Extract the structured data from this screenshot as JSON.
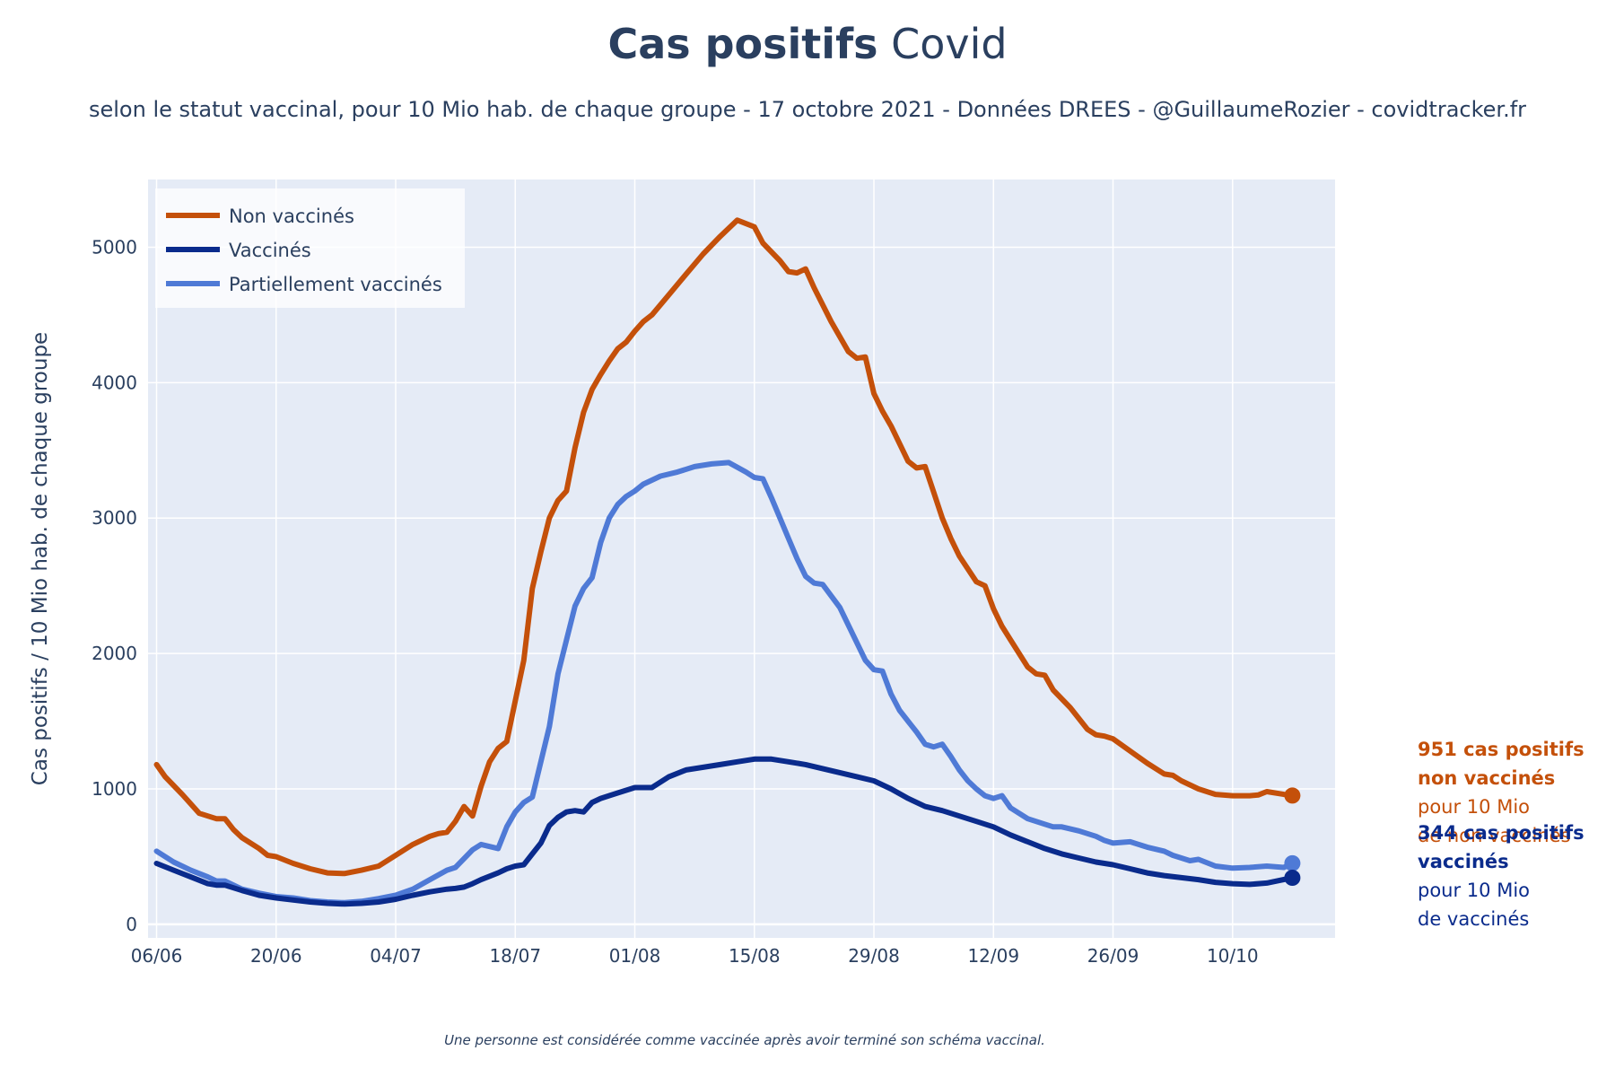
{
  "header": {
    "title_bold": "Cas positifs",
    "title_rest": " Covid",
    "subtitle": "selon le statut vaccinal, pour 10 Mio hab. de chaque groupe - 17 octobre 2021 - Données DREES - @GuillaumeRozier - covidtracker.fr"
  },
  "footnote": "Une personne est considérée comme vaccinée après avoir terminé son schéma vaccinal.",
  "colors": {
    "non_vaccines": "#c4500a",
    "vaccines": "#0a2b8c",
    "partiellement": "#4f7ad6",
    "plot_bg": "#e5ebf6",
    "grid": "#ffffff",
    "text": "#2a3f5f"
  },
  "annotations": [
    {
      "series": "Non vaccinés",
      "lines": [
        {
          "text": "951 cas positifs",
          "bold": true
        },
        {
          "text": "non vaccinés",
          "bold": true
        },
        {
          "text": "pour 10 Mio",
          "bold": false
        },
        {
          "text": "de non vaccinés",
          "bold": false
        }
      ]
    },
    {
      "series": "Vaccinés",
      "lines": [
        {
          "text": "344 cas positifs",
          "bold": true
        },
        {
          "text": "vaccinés",
          "bold": true
        },
        {
          "text": "pour 10 Mio",
          "bold": false
        },
        {
          "text": "de vaccinés",
          "bold": false
        }
      ]
    }
  ],
  "chart_data": {
    "type": "line",
    "title": "Cas positifs Covid",
    "xlabel": "",
    "ylabel": "Cas positifs / 10 Mio hab. de chaque groupe",
    "ylim": [
      -100,
      5500
    ],
    "xlim": [
      "2021-06-05",
      "2021-10-22"
    ],
    "x_tick_labels": [
      "06/06",
      "20/06",
      "04/07",
      "18/07",
      "01/08",
      "15/08",
      "29/08",
      "12/09",
      "26/09",
      "10/10"
    ],
    "x_tick_dates": [
      "2021-06-06",
      "2021-06-20",
      "2021-07-04",
      "2021-07-18",
      "2021-08-01",
      "2021-08-15",
      "2021-08-29",
      "2021-09-12",
      "2021-09-26",
      "2021-10-10"
    ],
    "y_ticks": [
      0,
      1000,
      2000,
      3000,
      4000,
      5000
    ],
    "grid": true,
    "legend_position": "top-left",
    "series": [
      {
        "name": "Non vaccinés",
        "x": [
          "2021-06-06",
          "2021-06-07",
          "2021-06-09",
          "2021-06-11",
          "2021-06-13",
          "2021-06-14",
          "2021-06-15",
          "2021-06-16",
          "2021-06-18",
          "2021-06-19",
          "2021-06-20",
          "2021-06-22",
          "2021-06-24",
          "2021-06-26",
          "2021-06-28",
          "2021-06-30",
          "2021-07-02",
          "2021-07-04",
          "2021-07-06",
          "2021-07-08",
          "2021-07-09",
          "2021-07-10",
          "2021-07-11",
          "2021-07-12",
          "2021-07-13",
          "2021-07-14",
          "2021-07-15",
          "2021-07-16",
          "2021-07-17",
          "2021-07-18",
          "2021-07-19",
          "2021-07-20",
          "2021-07-21",
          "2021-07-22",
          "2021-07-23",
          "2021-07-24",
          "2021-07-25",
          "2021-07-26",
          "2021-07-27",
          "2021-07-28",
          "2021-07-29",
          "2021-07-30",
          "2021-07-31",
          "2021-08-01",
          "2021-08-02",
          "2021-08-03",
          "2021-08-05",
          "2021-08-07",
          "2021-08-09",
          "2021-08-11",
          "2021-08-13",
          "2021-08-15",
          "2021-08-16",
          "2021-08-18",
          "2021-08-19",
          "2021-08-20",
          "2021-08-21",
          "2021-08-22",
          "2021-08-24",
          "2021-08-26",
          "2021-08-27",
          "2021-08-28",
          "2021-08-29",
          "2021-08-30",
          "2021-08-31",
          "2021-09-02",
          "2021-09-03",
          "2021-09-04",
          "2021-09-05",
          "2021-09-06",
          "2021-09-07",
          "2021-09-08",
          "2021-09-10",
          "2021-09-11",
          "2021-09-12",
          "2021-09-13",
          "2021-09-14",
          "2021-09-16",
          "2021-09-17",
          "2021-09-18",
          "2021-09-19",
          "2021-09-21",
          "2021-09-23",
          "2021-09-24",
          "2021-09-25",
          "2021-09-26",
          "2021-09-28",
          "2021-09-30",
          "2021-10-02",
          "2021-10-03",
          "2021-10-04",
          "2021-10-06",
          "2021-10-08",
          "2021-10-10",
          "2021-10-12",
          "2021-10-13",
          "2021-10-14",
          "2021-10-16",
          "2021-10-17"
        ],
        "y": [
          1180,
          1090,
          960,
          820,
          780,
          780,
          700,
          640,
          560,
          510,
          500,
          450,
          410,
          380,
          375,
          400,
          430,
          510,
          590,
          650,
          670,
          680,
          760,
          870,
          800,
          1020,
          1200,
          1300,
          1350,
          1650,
          1950,
          2480,
          2750,
          3000,
          3130,
          3200,
          3520,
          3780,
          3950,
          4060,
          4160,
          4250,
          4300,
          4380,
          4450,
          4500,
          4650,
          4800,
          4950,
          5080,
          5200,
          5150,
          5030,
          4900,
          4820,
          4810,
          4840,
          4700,
          4450,
          4230,
          4180,
          4190,
          3920,
          3790,
          3680,
          3420,
          3370,
          3380,
          3190,
          3000,
          2850,
          2720,
          2530,
          2500,
          2330,
          2200,
          2100,
          1900,
          1850,
          1840,
          1730,
          1600,
          1440,
          1400,
          1390,
          1370,
          1280,
          1190,
          1110,
          1100,
          1060,
          1000,
          960,
          950,
          950,
          955,
          980,
          960,
          951
        ]
      },
      {
        "name": "Vaccinés",
        "x": [
          "2021-06-06",
          "2021-06-08",
          "2021-06-10",
          "2021-06-12",
          "2021-06-13",
          "2021-06-14",
          "2021-06-16",
          "2021-06-18",
          "2021-06-20",
          "2021-06-22",
          "2021-06-24",
          "2021-06-26",
          "2021-06-28",
          "2021-06-30",
          "2021-07-02",
          "2021-07-04",
          "2021-07-06",
          "2021-07-08",
          "2021-07-10",
          "2021-07-11",
          "2021-07-12",
          "2021-07-13",
          "2021-07-14",
          "2021-07-16",
          "2021-07-17",
          "2021-07-18",
          "2021-07-19",
          "2021-07-20",
          "2021-07-21",
          "2021-07-22",
          "2021-07-23",
          "2021-07-24",
          "2021-07-25",
          "2021-07-26",
          "2021-07-27",
          "2021-07-28",
          "2021-07-30",
          "2021-08-01",
          "2021-08-03",
          "2021-08-05",
          "2021-08-07",
          "2021-08-09",
          "2021-08-11",
          "2021-08-13",
          "2021-08-15",
          "2021-08-17",
          "2021-08-19",
          "2021-08-21",
          "2021-08-23",
          "2021-08-25",
          "2021-08-27",
          "2021-08-29",
          "2021-08-31",
          "2021-09-02",
          "2021-09-04",
          "2021-09-06",
          "2021-09-08",
          "2021-09-10",
          "2021-09-12",
          "2021-09-14",
          "2021-09-16",
          "2021-09-18",
          "2021-09-20",
          "2021-09-22",
          "2021-09-24",
          "2021-09-26",
          "2021-09-28",
          "2021-09-30",
          "2021-10-02",
          "2021-10-04",
          "2021-10-06",
          "2021-10-08",
          "2021-10-10",
          "2021-10-12",
          "2021-10-14",
          "2021-10-17"
        ],
        "y": [
          450,
          400,
          350,
          300,
          290,
          290,
          250,
          215,
          195,
          180,
          165,
          155,
          150,
          155,
          165,
          185,
          215,
          240,
          260,
          265,
          275,
          300,
          330,
          380,
          410,
          430,
          440,
          520,
          600,
          730,
          790,
          830,
          840,
          830,
          900,
          930,
          970,
          1010,
          1010,
          1090,
          1140,
          1160,
          1180,
          1200,
          1220,
          1220,
          1200,
          1180,
          1150,
          1120,
          1090,
          1060,
          1000,
          930,
          870,
          840,
          800,
          760,
          720,
          660,
          610,
          560,
          520,
          490,
          460,
          440,
          410,
          380,
          360,
          345,
          330,
          310,
          300,
          295,
          305,
          344
        ]
      },
      {
        "name": "Partiellement vaccinés",
        "x": [
          "2021-06-06",
          "2021-06-08",
          "2021-06-10",
          "2021-06-12",
          "2021-06-13",
          "2021-06-14",
          "2021-06-16",
          "2021-06-18",
          "2021-06-20",
          "2021-06-22",
          "2021-06-24",
          "2021-06-26",
          "2021-06-28",
          "2021-06-30",
          "2021-07-02",
          "2021-07-04",
          "2021-07-06",
          "2021-07-08",
          "2021-07-10",
          "2021-07-11",
          "2021-07-13",
          "2021-07-14",
          "2021-07-16",
          "2021-07-17",
          "2021-07-18",
          "2021-07-19",
          "2021-07-20",
          "2021-07-21",
          "2021-07-22",
          "2021-07-23",
          "2021-07-24",
          "2021-07-25",
          "2021-07-26",
          "2021-07-27",
          "2021-07-28",
          "2021-07-29",
          "2021-07-30",
          "2021-07-31",
          "2021-08-01",
          "2021-08-02",
          "2021-08-04",
          "2021-08-06",
          "2021-08-08",
          "2021-08-10",
          "2021-08-12",
          "2021-08-14",
          "2021-08-15",
          "2021-08-16",
          "2021-08-17",
          "2021-08-18",
          "2021-08-19",
          "2021-08-20",
          "2021-08-21",
          "2021-08-22",
          "2021-08-23",
          "2021-08-25",
          "2021-08-27",
          "2021-08-28",
          "2021-08-29",
          "2021-08-30",
          "2021-08-31",
          "2021-09-01",
          "2021-09-02",
          "2021-09-03",
          "2021-09-04",
          "2021-09-05",
          "2021-09-06",
          "2021-09-07",
          "2021-09-08",
          "2021-09-09",
          "2021-09-10",
          "2021-09-11",
          "2021-09-12",
          "2021-09-13",
          "2021-09-14",
          "2021-09-16",
          "2021-09-18",
          "2021-09-19",
          "2021-09-20",
          "2021-09-22",
          "2021-09-24",
          "2021-09-25",
          "2021-09-26",
          "2021-09-28",
          "2021-09-30",
          "2021-10-02",
          "2021-10-03",
          "2021-10-04",
          "2021-10-05",
          "2021-10-06",
          "2021-10-08",
          "2021-10-10",
          "2021-10-12",
          "2021-10-14",
          "2021-10-16",
          "2021-10-17"
        ],
        "y": [
          540,
          460,
          400,
          350,
          320,
          320,
          260,
          230,
          205,
          195,
          175,
          165,
          160,
          170,
          190,
          215,
          260,
          330,
          400,
          420,
          550,
          590,
          560,
          720,
          830,
          900,
          940,
          1200,
          1460,
          1850,
          2100,
          2350,
          2480,
          2560,
          2820,
          3000,
          3100,
          3160,
          3200,
          3250,
          3310,
          3340,
          3380,
          3400,
          3410,
          3340,
          3300,
          3290,
          3150,
          3000,
          2850,
          2700,
          2570,
          2520,
          2510,
          2340,
          2080,
          1950,
          1880,
          1870,
          1700,
          1580,
          1500,
          1420,
          1330,
          1310,
          1330,
          1240,
          1140,
          1060,
          1000,
          950,
          930,
          950,
          860,
          780,
          740,
          720,
          720,
          690,
          650,
          620,
          600,
          610,
          570,
          540,
          510,
          490,
          470,
          480,
          430,
          415,
          420,
          430,
          420,
          451
        ]
      }
    ]
  }
}
